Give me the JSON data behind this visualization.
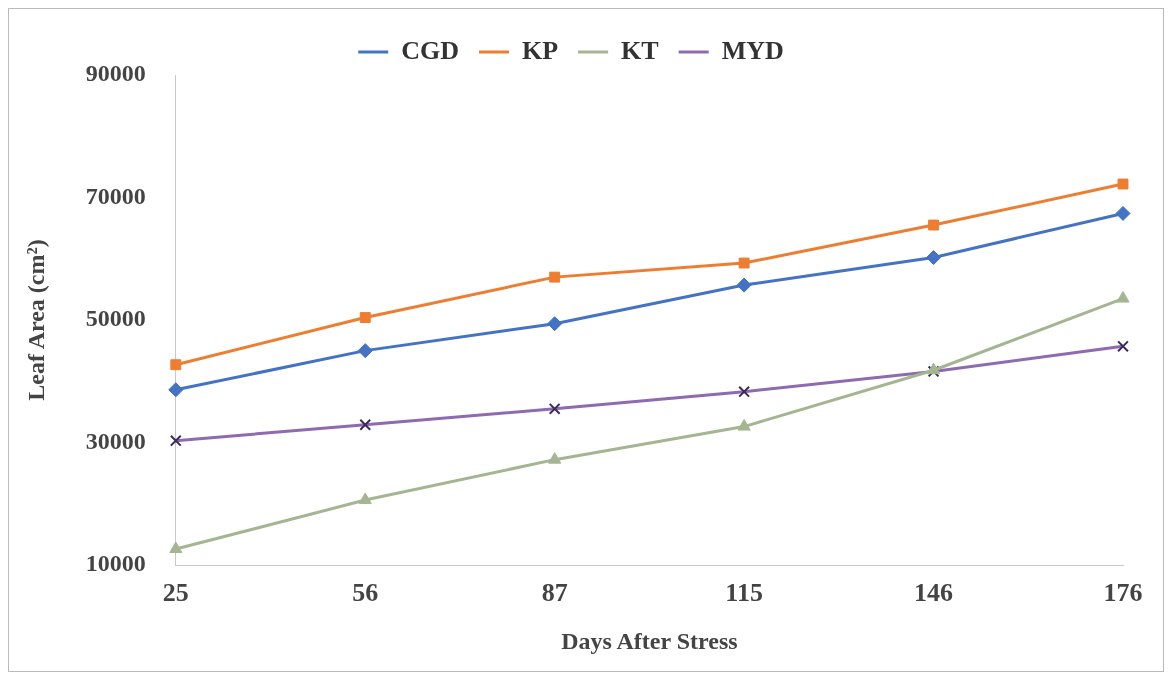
{
  "chart_data": {
    "type": "line",
    "xlabel": "Days After Stress",
    "ylabel": "Leaf Area (cm²)",
    "categories": [
      "25",
      "56",
      "87",
      "115",
      "146",
      "176"
    ],
    "series": [
      {
        "name": "CGD",
        "color": "#4472c4",
        "marker": "diamond",
        "values": [
          38600,
          45000,
          49400,
          55700,
          60200,
          67400
        ]
      },
      {
        "name": "KP",
        "color": "#ed7d31",
        "marker": "square",
        "values": [
          42700,
          50400,
          57000,
          59300,
          65500,
          72200
        ]
      },
      {
        "name": "KT",
        "color": "#a5b592",
        "marker": "triangle",
        "values": [
          12600,
          20600,
          27200,
          32600,
          41800,
          53500
        ]
      },
      {
        "name": "MYD",
        "color": "#8e6ab0",
        "marker": "cross",
        "values": [
          30300,
          32900,
          35500,
          38300,
          41600,
          45700
        ]
      }
    ],
    "ylim": [
      10000,
      90000
    ],
    "yticks": [
      10000,
      30000,
      50000,
      70000,
      90000
    ],
    "grid": false,
    "legend": "top",
    "line_style": "solid"
  }
}
